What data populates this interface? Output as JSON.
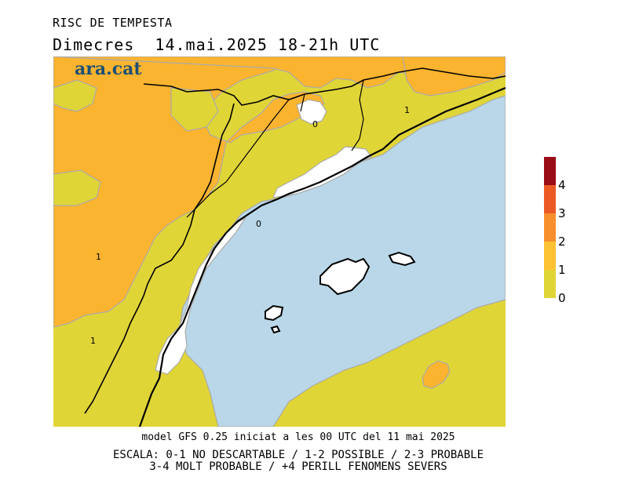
{
  "header": {
    "title": "RISC DE TEMPESTA",
    "subtitle": "Dimecres  14.mai.2025 18-21h UTC"
  },
  "brand": {
    "name": "ara.cat",
    "color": "#1d4f73"
  },
  "map": {
    "sea_color": "#b9d7e8",
    "land_colors": {
      "level0": "#ffffff",
      "level1": "#e0d537",
      "level2": "#fbb42f"
    },
    "contour_labels": [
      "0",
      "0",
      "1",
      "1",
      "1"
    ]
  },
  "legend": {
    "levels": [
      {
        "label": "0",
        "color": "#e0d537"
      },
      {
        "label": "1",
        "color": "#fcc234"
      },
      {
        "label": "2",
        "color": "#f7902c"
      },
      {
        "label": "3",
        "color": "#ec5a24"
      },
      {
        "label": "4",
        "color": "#9a0d16"
      }
    ],
    "ticks": [
      "0",
      "1",
      "2",
      "3",
      "4"
    ]
  },
  "footer": {
    "model": "model GFS 0.25 iniciat a les 00 UTC del 11 mai 2025",
    "scale_line1": "ESCALA: 0-1 NO DESCARTABLE / 1-2 POSSIBLE / 2-3 PROBABLE",
    "scale_line2": "3-4 MOLT PROBABLE / +4 PERILL FENOMENS SEVERS"
  }
}
